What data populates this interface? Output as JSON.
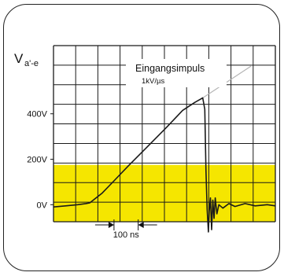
{
  "chart_data": {
    "type": "line",
    "title": "",
    "ylabel": "V",
    "ylabel_sub": "a'-e",
    "xlabel": "",
    "y_ticks": [
      "400V",
      "200V",
      "0V"
    ],
    "y_tick_values": [
      400,
      200,
      0
    ],
    "ylim": [
      -75,
      700
    ],
    "xlim": [
      0,
      550
    ],
    "x_unit": "ns",
    "grid": true,
    "scale_marker": {
      "label": "100 ns",
      "from": 150,
      "to": 210
    },
    "annotation": {
      "text": "Eingangsimpuls",
      "subtext": "1kV/µs"
    },
    "band": {
      "from": -75,
      "to": 175,
      "color": "#f5e600"
    },
    "colors": {
      "trace": "#1a1a1a",
      "band": "#f5e600",
      "grid": "#1a1a1a",
      "ramp": "#b5b5b5"
    },
    "series": [
      {
        "x": [
          0,
          30,
          60,
          80,
          90,
          120,
          150,
          185,
          230,
          280,
          320,
          350,
          370,
          375,
          378,
          381,
          384,
          386,
          389,
          392,
          395,
          398,
          401,
          405,
          410,
          420,
          435,
          450,
          475,
          500,
          530,
          550
        ],
        "y": [
          -10,
          -5,
          0,
          5,
          8,
          50,
          105,
          170,
          250,
          340,
          415,
          450,
          470,
          420,
          150,
          -20,
          -120,
          -30,
          30,
          -110,
          20,
          -60,
          30,
          -40,
          0,
          -15,
          5,
          -8,
          5,
          -5,
          0,
          -5
        ]
      }
    ]
  }
}
